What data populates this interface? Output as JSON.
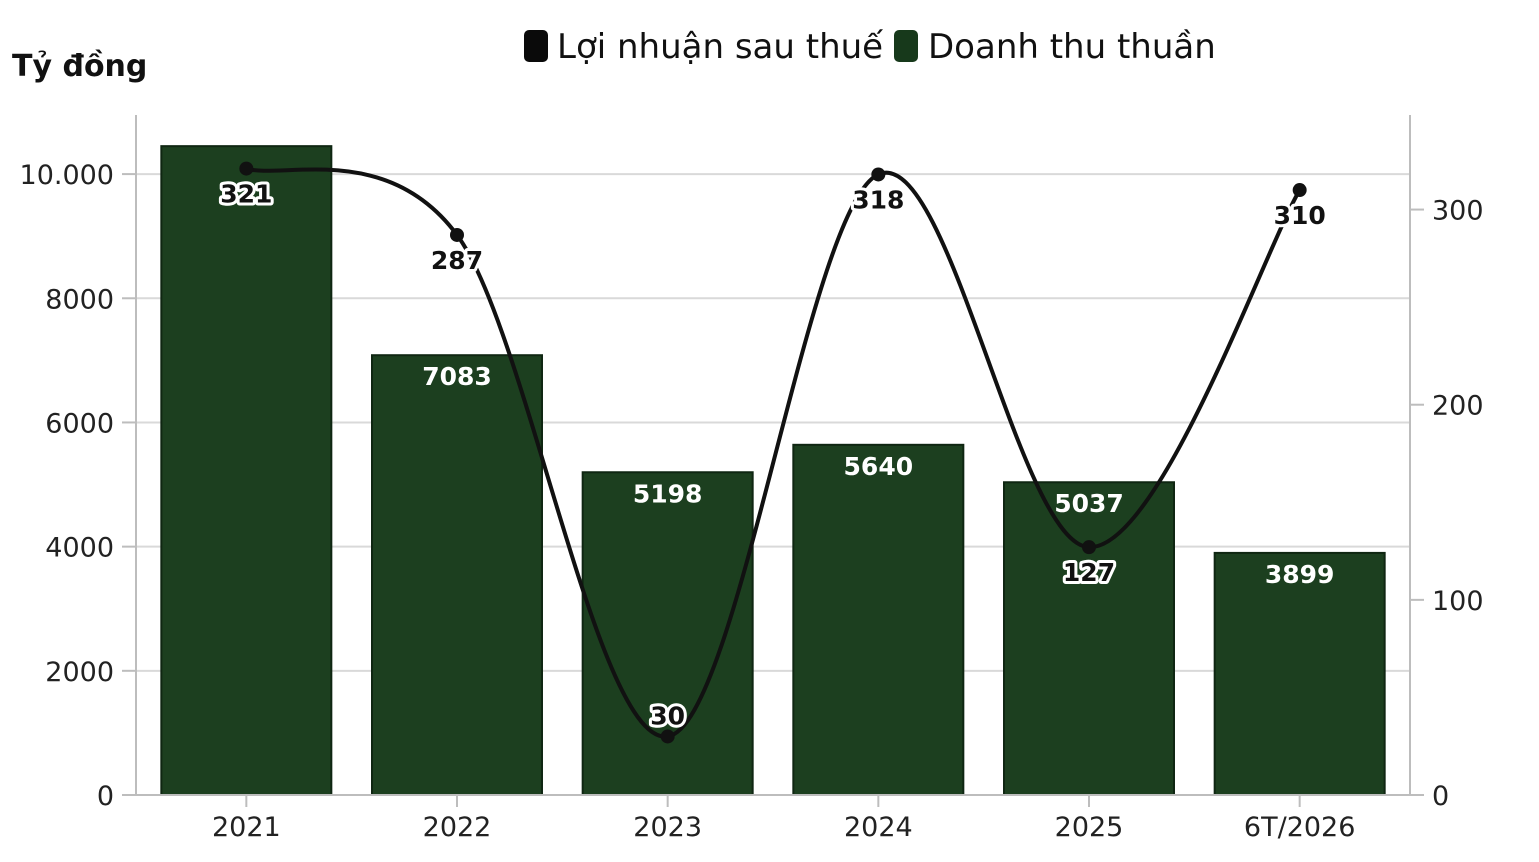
{
  "chart_data": {
    "type": "bar",
    "unit_label": "Tỷ đồng",
    "categories": [
      "2021",
      "2022",
      "2023",
      "2024",
      "2025",
      "6T/2026"
    ],
    "series": [
      {
        "name": "Doanh thu thuần",
        "type": "bar",
        "axis": "left",
        "values": [
          10450,
          7083,
          5198,
          5640,
          5037,
          3899
        ],
        "labels": [
          "",
          "7083",
          "5198",
          "5640",
          "5037",
          "3899"
        ]
      },
      {
        "name": "Lợi nhuận sau thuế",
        "type": "line",
        "axis": "right",
        "values": [
          321,
          287,
          30,
          318,
          127,
          310
        ],
        "labels": [
          "321",
          "287",
          "30",
          "318",
          "127",
          "310"
        ]
      }
    ],
    "y_left": {
      "lim": [
        0,
        11000
      ],
      "ticks": [
        0,
        2000,
        4000,
        6000,
        8000,
        10000
      ],
      "tick_labels": [
        "0",
        "2000",
        "4000",
        "6000",
        "8000",
        "10.000"
      ]
    },
    "y_right": {
      "lim": [
        0,
        350
      ],
      "ticks": [
        0,
        100,
        200,
        300
      ],
      "tick_labels": [
        "0",
        "100",
        "200",
        "300"
      ]
    },
    "legend": {
      "placement": "top",
      "items": [
        "Lợi nhuận sau thuế",
        "Doanh thu thuần"
      ]
    },
    "grid": true,
    "colors": {
      "bar": "#1c3f1f",
      "bar_edge": "#0f2612",
      "line": "#111111",
      "grid": "#d9d9d9",
      "legend_profit": "#0a0a0a",
      "legend_revenue": "#17391b"
    }
  }
}
